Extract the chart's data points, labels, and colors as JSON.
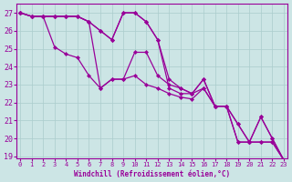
{
  "title": "",
  "xlabel": "Windchill (Refroidissement éolien,°C)",
  "x_values": [
    0,
    1,
    2,
    3,
    4,
    5,
    6,
    7,
    8,
    9,
    10,
    11,
    12,
    13,
    14,
    15,
    16,
    17,
    18,
    19,
    20,
    21,
    22,
    23
  ],
  "series": [
    [
      27.0,
      26.8,
      26.8,
      26.8,
      26.8,
      26.8,
      26.5,
      26.0,
      25.5,
      27.0,
      27.0,
      26.5,
      25.5,
      23.3,
      22.8,
      22.5,
      23.3,
      21.8,
      21.8,
      19.8,
      19.8,
      21.2,
      20.0,
      18.8
    ],
    [
      27.0,
      26.8,
      26.8,
      25.1,
      24.7,
      24.5,
      23.5,
      22.8,
      23.3,
      23.3,
      23.5,
      23.0,
      22.8,
      22.5,
      22.3,
      22.2,
      22.8,
      21.8,
      21.8,
      20.8,
      19.8,
      19.8,
      19.8,
      18.8
    ],
    [
      27.0,
      26.8,
      26.8,
      26.8,
      26.8,
      26.8,
      26.5,
      26.0,
      25.5,
      27.0,
      27.0,
      26.5,
      25.5,
      22.8,
      22.5,
      22.5,
      23.3,
      21.8,
      21.8,
      19.8,
      19.8,
      21.2,
      20.0,
      18.8
    ],
    [
      27.0,
      26.8,
      26.8,
      26.8,
      26.8,
      26.8,
      26.5,
      22.8,
      23.3,
      23.3,
      24.8,
      24.8,
      23.5,
      23.0,
      22.8,
      22.5,
      22.8,
      21.8,
      21.8,
      20.8,
      19.8,
      19.8,
      19.8,
      18.8
    ]
  ],
  "line_color": "#990099",
  "bg_color": "#cce5e5",
  "grid_color": "#aacccc",
  "ylim": [
    18.9,
    27.5
  ],
  "yticks": [
    19,
    20,
    21,
    22,
    23,
    24,
    25,
    26,
    27
  ],
  "xticks": [
    0,
    1,
    2,
    3,
    4,
    5,
    6,
    7,
    8,
    9,
    10,
    11,
    12,
    13,
    14,
    15,
    16,
    17,
    18,
    19,
    20,
    21,
    22,
    23
  ]
}
